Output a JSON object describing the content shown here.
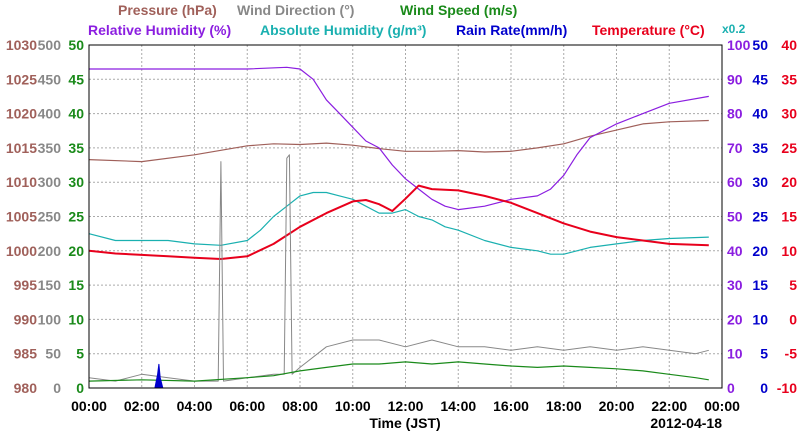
{
  "chart_data": {
    "type": "line",
    "title": "",
    "date": "2012-04-18",
    "xlabel": "Time (JST)",
    "x_ticks": [
      "00:00",
      "02:00",
      "04:00",
      "06:00",
      "08:00",
      "10:00",
      "12:00",
      "14:00",
      "16:00",
      "18:00",
      "20:00",
      "22:00",
      "00:00"
    ],
    "x_range_hours": [
      0,
      24
    ],
    "grid": true,
    "axes": {
      "pressure": {
        "label": "Pressure (hPa)",
        "color": "#a0605a",
        "range": [
          980,
          1030
        ],
        "ticks": [
          980,
          985,
          990,
          995,
          1000,
          1005,
          1010,
          1015,
          1020,
          1025,
          1030
        ]
      },
      "wind_dir": {
        "label": "Wind Direction (°)",
        "color": "#888888",
        "range": [
          0,
          500
        ],
        "ticks": [
          0,
          50,
          100,
          150,
          200,
          250,
          300,
          350,
          400,
          450,
          500
        ]
      },
      "wind_speed": {
        "label": "Wind Speed (m/s)",
        "color": "#1a8a1a",
        "range": [
          0,
          50
        ],
        "ticks": [
          0,
          5,
          10,
          15,
          20,
          25,
          30,
          35,
          40,
          45,
          50
        ]
      },
      "humidity": {
        "label": "Relative Humidity (%)",
        "color": "#8b1ee0",
        "range": [
          0,
          100
        ],
        "ticks": [
          0,
          10,
          20,
          30,
          40,
          50,
          60,
          70,
          80,
          90,
          100
        ]
      },
      "abs_humidity": {
        "label": "Absolute Humidity (g/m³)",
        "scale_note": "x0.2",
        "color": "#1ab0b0",
        "range": [
          0,
          50
        ],
        "ticks": [
          0,
          5,
          10,
          15,
          20,
          25,
          30,
          35,
          40,
          45,
          50
        ]
      },
      "rain": {
        "label": "Rain Rate(mm/h)",
        "color": "#0000cc",
        "range": [
          0,
          50
        ],
        "ticks": [
          0,
          5,
          10,
          15,
          20,
          25,
          30,
          35,
          40,
          45,
          50
        ]
      },
      "temperature": {
        "label": "Temperature (°C)",
        "color": "#e8001c",
        "range": [
          -10,
          40
        ],
        "ticks": [
          -10,
          -5,
          0,
          5,
          10,
          15,
          20,
          25,
          30,
          35,
          40
        ]
      }
    },
    "series": [
      {
        "name": "Pressure (hPa)",
        "axis": "pressure",
        "x": [
          0,
          2,
          4,
          6,
          7,
          8,
          9,
          10,
          11,
          12,
          13,
          14,
          15,
          16,
          17,
          18,
          19,
          20,
          21,
          22,
          23.5
        ],
        "y": [
          1013.3,
          1013.0,
          1014.0,
          1015.3,
          1015.6,
          1015.5,
          1015.7,
          1015.4,
          1014.9,
          1014.5,
          1014.5,
          1014.6,
          1014.4,
          1014.5,
          1015.0,
          1015.6,
          1016.7,
          1017.6,
          1018.5,
          1018.8,
          1019.0
        ]
      },
      {
        "name": "Relative Humidity (%)",
        "axis": "humidity",
        "x": [
          0,
          3,
          6,
          7.5,
          8,
          8.5,
          9,
          9.5,
          10,
          10.5,
          11,
          11.5,
          12,
          12.5,
          13,
          13.5,
          14,
          15,
          16,
          17,
          17.5,
          18,
          18.5,
          19,
          20,
          21,
          22,
          23.5
        ],
        "y": [
          93,
          93,
          93,
          93.5,
          93,
          90,
          84,
          80,
          76,
          72,
          70,
          65,
          61,
          58,
          55,
          53,
          52,
          53,
          55,
          56,
          58,
          62,
          68,
          73,
          77,
          80,
          83,
          85
        ]
      },
      {
        "name": "Absolute Humidity (g/m³)",
        "axis": "abs_humidity",
        "x": [
          0,
          1,
          2,
          3,
          4,
          5,
          6,
          6.5,
          7,
          7.5,
          8,
          8.5,
          9,
          9.5,
          10,
          10.5,
          11,
          11.5,
          12,
          12.5,
          13,
          13.5,
          14,
          15,
          16,
          17,
          17.5,
          18,
          19,
          20,
          21,
          22,
          23.5
        ],
        "y": [
          22.5,
          21.5,
          21.5,
          21.5,
          21.0,
          20.8,
          21.5,
          23.0,
          25.0,
          26.5,
          28.0,
          28.5,
          28.5,
          28.0,
          27.5,
          26.5,
          25.5,
          25.5,
          26.0,
          25.0,
          24.5,
          23.5,
          23.0,
          21.5,
          20.5,
          20.0,
          19.5,
          19.5,
          20.5,
          21.0,
          21.5,
          21.8,
          22.0
        ]
      },
      {
        "name": "Temperature (°C)",
        "axis": "temperature",
        "x": [
          0,
          1,
          2,
          3,
          4,
          5,
          6,
          7,
          8,
          9,
          10,
          10.5,
          11,
          11.5,
          12,
          12.5,
          13,
          14,
          15,
          16,
          17,
          18,
          19,
          20,
          21,
          22,
          23.5
        ],
        "y": [
          10.0,
          9.6,
          9.4,
          9.2,
          9.0,
          8.8,
          9.2,
          11.0,
          13.5,
          15.5,
          17.2,
          17.4,
          16.8,
          15.8,
          17.6,
          19.5,
          19.0,
          18.8,
          18.0,
          17.0,
          15.5,
          14.0,
          12.8,
          12.0,
          11.5,
          11.0,
          10.8
        ]
      },
      {
        "name": "Wind Direction (°)",
        "axis": "wind_dir",
        "x": [
          0,
          1,
          2,
          3,
          4,
          4.9,
          5.0,
          5.1,
          6,
          7,
          7.4,
          7.5,
          7.6,
          7.7,
          8,
          9,
          10,
          11,
          12,
          13,
          14,
          15,
          16,
          17,
          18,
          19,
          20,
          21,
          22,
          23,
          23.5
        ],
        "y": [
          15,
          10,
          20,
          15,
          10,
          10,
          330,
          10,
          15,
          20,
          20,
          335,
          340,
          20,
          30,
          60,
          70,
          70,
          60,
          70,
          60,
          60,
          55,
          60,
          55,
          60,
          55,
          60,
          55,
          50,
          55
        ]
      },
      {
        "name": "Wind Speed (m/s)",
        "axis": "wind_speed",
        "x": [
          0,
          2,
          4,
          6,
          7,
          8,
          9,
          10,
          11,
          12,
          13,
          14,
          15,
          16,
          17,
          18,
          19,
          20,
          21,
          22,
          23,
          23.5
        ],
        "y": [
          1.0,
          1.2,
          1.0,
          1.5,
          1.8,
          2.5,
          3.0,
          3.5,
          3.5,
          3.8,
          3.5,
          3.8,
          3.5,
          3.2,
          3.0,
          3.2,
          3.0,
          2.8,
          2.5,
          2.0,
          1.5,
          1.2
        ]
      },
      {
        "name": "Rain Rate(mm/h)",
        "axis": "rain",
        "x": [
          2.5,
          2.6,
          2.65,
          2.7,
          2.8
        ],
        "y": [
          0,
          2,
          3.5,
          1.5,
          0
        ]
      }
    ]
  }
}
